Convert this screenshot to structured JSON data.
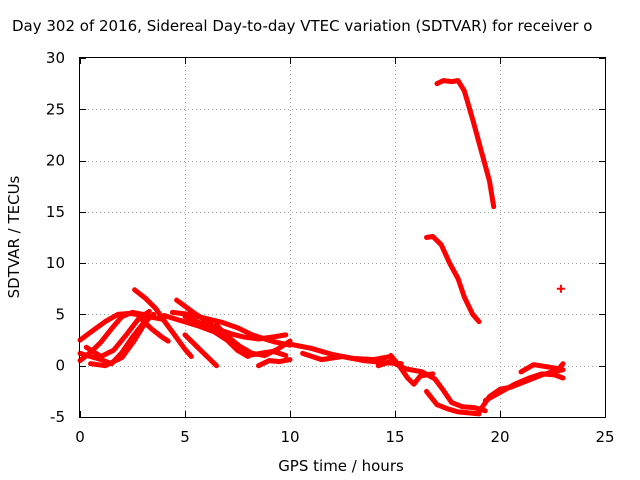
{
  "chart_data": {
    "type": "scatter",
    "title": "Day 302 of 2016, Sidereal Day-to-day VTEC variation (SDTVAR) for receiver o",
    "xlabel": "GPS time / hours",
    "ylabel": "SDTVAR / TECUs",
    "xlim": [
      0,
      25
    ],
    "ylim": [
      -5,
      30
    ],
    "xticks": [
      0,
      5,
      10,
      15,
      20,
      25
    ],
    "yticks": [
      -5,
      0,
      5,
      10,
      15,
      20,
      25,
      30
    ],
    "grid": true,
    "color": "#ff0000",
    "series": [
      {
        "name": "track-1",
        "x": [
          0,
          0.6,
          1.2,
          1.8,
          2.4,
          3.0,
          3.5,
          4.0
        ],
        "y": [
          2.5,
          3.4,
          4.3,
          5.0,
          5.1,
          4.9,
          4.7,
          4.5
        ]
      },
      {
        "name": "track-2",
        "x": [
          0,
          0.5,
          1.0,
          1.5,
          2.0,
          2.5,
          3.0
        ],
        "y": [
          0.5,
          1.3,
          2.3,
          3.6,
          4.8,
          5.2,
          5.0
        ]
      },
      {
        "name": "track-3",
        "x": [
          0,
          0.5,
          1.0,
          1.5,
          2.0,
          2.5,
          3.0,
          3.5
        ],
        "y": [
          1.2,
          0.9,
          0.6,
          0.2,
          1.3,
          2.8,
          4.1,
          5.0
        ]
      },
      {
        "name": "track-4",
        "x": [
          0.3,
          1.0,
          1.6,
          2.2,
          2.8,
          3.3
        ],
        "y": [
          1.8,
          0.9,
          1.5,
          3.0,
          4.6,
          5.3
        ]
      },
      {
        "name": "track-5",
        "x": [
          0.5,
          1.2,
          2.0,
          2.6,
          3.2
        ],
        "y": [
          0.2,
          0.0,
          0.8,
          2.5,
          4.5
        ]
      },
      {
        "name": "track-6",
        "x": [
          2.6,
          3.1,
          3.6,
          4.0,
          4.5,
          5.0,
          5.3
        ],
        "y": [
          7.4,
          6.6,
          5.6,
          4.4,
          3.0,
          1.6,
          0.9
        ]
      },
      {
        "name": "track-7",
        "x": [
          2.8,
          3.4,
          3.9,
          4.2
        ],
        "y": [
          4.8,
          3.6,
          2.8,
          2.4
        ]
      },
      {
        "name": "track-8",
        "x": [
          4.0,
          4.8,
          5.6,
          6.4,
          7.0,
          7.5,
          8.0
        ],
        "y": [
          4.9,
          4.4,
          3.9,
          3.3,
          2.5,
          1.5,
          0.9
        ]
      },
      {
        "name": "track-9",
        "x": [
          4.4,
          5.2,
          6.0,
          6.8,
          7.5,
          8.2,
          8.8,
          9.3,
          10.0
        ],
        "y": [
          5.2,
          5.0,
          4.6,
          4.2,
          3.7,
          3.0,
          2.6,
          2.3,
          2.0
        ]
      },
      {
        "name": "track-10",
        "x": [
          4.6,
          5.4,
          6.2,
          7.0,
          7.6,
          8.2,
          8.8,
          9.4,
          10.0
        ],
        "y": [
          6.4,
          5.2,
          4.1,
          2.9,
          1.9,
          1.2,
          1.0,
          1.6,
          2.4
        ]
      },
      {
        "name": "track-11",
        "x": [
          5.0,
          5.8,
          6.5,
          7.2,
          7.8,
          8.5,
          9.2,
          9.8
        ],
        "y": [
          4.8,
          4.1,
          3.6,
          3.1,
          2.8,
          2.6,
          2.8,
          3.0
        ]
      },
      {
        "name": "track-12",
        "x": [
          5.0,
          5.5,
          6.0,
          6.5
        ],
        "y": [
          3.0,
          2.0,
          1.0,
          0.0
        ]
      },
      {
        "name": "track-13",
        "x": [
          6.5,
          7.0,
          7.5,
          8.0,
          8.6,
          9.2,
          9.8
        ],
        "y": [
          4.0,
          2.8,
          1.5,
          1.0,
          1.2,
          1.4,
          1.0
        ]
      },
      {
        "name": "track-14",
        "x": [
          8.5,
          9.0,
          9.5,
          10.0
        ],
        "y": [
          0.0,
          0.5,
          0.4,
          0.6
        ]
      },
      {
        "name": "track-15",
        "x": [
          10.0,
          11.0,
          12.0,
          13.0,
          14.0,
          14.8
        ],
        "y": [
          2.1,
          1.7,
          1.1,
          0.7,
          0.6,
          0.9
        ]
      },
      {
        "name": "track-16",
        "x": [
          10.6,
          11.5,
          12.5,
          13.5,
          14.5,
          15.3
        ],
        "y": [
          1.2,
          0.6,
          0.9,
          0.5,
          0.3,
          0.2
        ]
      },
      {
        "name": "track-17",
        "x": [
          14.8,
          15.2,
          15.6,
          15.9,
          16.2,
          16.8
        ],
        "y": [
          1.0,
          0.0,
          -1.2,
          -1.8,
          -1.0,
          -0.8
        ]
      },
      {
        "name": "track-18",
        "x": [
          14.2,
          14.8,
          15.5,
          16.3,
          16.9,
          17.3,
          17.7,
          18.2,
          18.8,
          19.3
        ],
        "y": [
          0.0,
          0.4,
          -0.3,
          -0.6,
          -1.3,
          -2.4,
          -3.6,
          -4.0,
          -4.1,
          -4.4
        ]
      },
      {
        "name": "track-19",
        "x": [
          16.5,
          17.0,
          17.5,
          18.0,
          18.5,
          19.0
        ],
        "y": [
          -2.5,
          -3.8,
          -4.2,
          -4.5,
          -4.6,
          -4.7
        ]
      },
      {
        "name": "track-20",
        "x": [
          19.0,
          19.5,
          20.0,
          20.5,
          21.0,
          21.5,
          22.0,
          22.5,
          23.0
        ],
        "y": [
          -4.5,
          -3.0,
          -2.3,
          -2.1,
          -1.7,
          -1.3,
          -0.9,
          -0.6,
          -0.4
        ]
      },
      {
        "name": "track-21",
        "x": [
          19.3,
          20.0,
          20.7,
          21.4,
          22.0,
          22.6,
          23.0
        ],
        "y": [
          -3.4,
          -2.6,
          -1.8,
          -1.2,
          -0.8,
          -0.9,
          -1.2
        ]
      },
      {
        "name": "track-22",
        "x": [
          21.0,
          21.6,
          22.2,
          22.8,
          23.0
        ],
        "y": [
          -0.6,
          0.1,
          -0.1,
          -0.3,
          0.2
        ]
      },
      {
        "name": "track-23",
        "x": [
          17.0,
          17.3,
          17.7,
          18.0,
          18.3,
          18.7,
          19.1,
          19.5,
          19.7
        ],
        "y": [
          27.5,
          27.8,
          27.7,
          27.8,
          26.8,
          24.0,
          21.0,
          18.0,
          15.5
        ]
      },
      {
        "name": "track-24",
        "x": [
          16.5,
          16.8,
          17.2,
          17.6,
          18.0,
          18.3,
          18.7,
          19.0
        ],
        "y": [
          12.5,
          12.6,
          11.8,
          10.0,
          8.5,
          6.7,
          5.0,
          4.3
        ]
      },
      {
        "name": "point-1",
        "x": [
          22.9
        ],
        "y": [
          7.5
        ]
      }
    ]
  }
}
